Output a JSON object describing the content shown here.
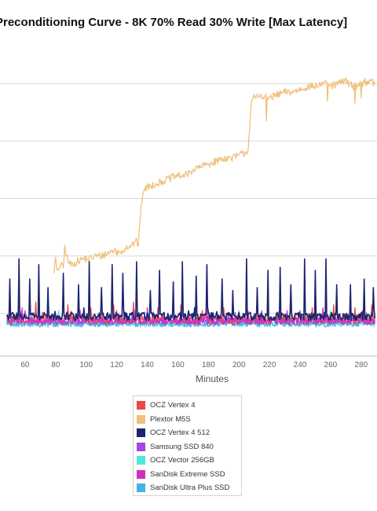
{
  "chart_data": {
    "type": "line",
    "title": "Preconditioning Curve - 8K 70% Read 30% Write [Max Latency]",
    "xlabel": "Minutes",
    "ylabel": "",
    "x_ticks": [
      60,
      80,
      100,
      120,
      140,
      160,
      180,
      200,
      220,
      240,
      260,
      280
    ],
    "x_range_visible": [
      48,
      289
    ],
    "y_range": [
      0,
      100
    ],
    "y_gridlines": [
      5,
      25,
      45,
      65,
      85
    ],
    "grid": true,
    "legend_position": "bottom",
    "sample_interval_minutes": 1,
    "series": [
      {
        "name": "OCZ Vertex 4",
        "color": "#ef4646",
        "baseline": 3.0,
        "noise": 1.6,
        "spikes": [
          [
            50,
            8
          ],
          [
            67,
            9
          ],
          [
            75,
            7
          ],
          [
            88,
            8
          ],
          [
            103,
            7
          ],
          [
            118,
            8
          ],
          [
            131,
            9
          ],
          [
            147,
            7
          ],
          [
            162,
            8
          ],
          [
            176,
            6
          ],
          [
            190,
            7
          ],
          [
            205,
            8
          ],
          [
            219,
            7
          ],
          [
            234,
            9
          ],
          [
            248,
            7
          ],
          [
            262,
            8
          ],
          [
            276,
            7
          ],
          [
            287,
            8
          ]
        ]
      },
      {
        "name": "Plextor M5S",
        "color": "#f0c07c",
        "start_minute": 79,
        "path": [
          [
            79,
            20
          ],
          [
            80,
            24
          ],
          [
            81,
            19
          ],
          [
            83,
            22
          ],
          [
            85,
            21
          ],
          [
            86,
            28
          ],
          [
            88,
            23
          ],
          [
            90,
            22
          ],
          [
            94,
            23
          ],
          [
            98,
            24
          ],
          [
            102,
            24
          ],
          [
            106,
            25
          ],
          [
            110,
            25
          ],
          [
            114,
            26
          ],
          [
            118,
            27
          ],
          [
            122,
            26
          ],
          [
            126,
            28
          ],
          [
            130,
            29
          ],
          [
            133,
            30
          ],
          [
            134,
            29
          ],
          [
            135,
            35
          ],
          [
            136,
            42
          ],
          [
            137,
            47
          ],
          [
            140,
            49
          ],
          [
            145,
            50
          ],
          [
            150,
            51
          ],
          [
            155,
            52
          ],
          [
            160,
            53
          ],
          [
            165,
            53
          ],
          [
            170,
            55
          ],
          [
            175,
            56
          ],
          [
            180,
            57
          ],
          [
            185,
            58
          ],
          [
            190,
            59
          ],
          [
            195,
            59
          ],
          [
            200,
            60
          ],
          [
            204,
            61
          ],
          [
            206,
            62
          ],
          [
            207,
            70
          ],
          [
            208,
            78
          ],
          [
            210,
            80
          ],
          [
            215,
            81
          ],
          [
            220,
            80
          ],
          [
            225,
            81
          ],
          [
            230,
            82
          ],
          [
            235,
            82
          ],
          [
            240,
            83
          ],
          [
            245,
            84
          ],
          [
            250,
            84
          ],
          [
            255,
            85
          ],
          [
            260,
            84
          ],
          [
            265,
            85
          ],
          [
            270,
            86
          ],
          [
            275,
            84
          ],
          [
            280,
            85
          ],
          [
            285,
            86
          ],
          [
            289,
            85
          ]
        ],
        "noise": 1.3,
        "dips": [
          [
            218,
            72
          ],
          [
            258,
            79
          ],
          [
            276,
            78
          ],
          [
            280,
            80
          ]
        ]
      },
      {
        "name": "OCZ Vertex 4 512",
        "color": "#1c2470",
        "baseline": 4.0,
        "noise": 1.4,
        "spikes": [
          [
            50,
            17
          ],
          [
            56,
            24
          ],
          [
            63,
            17
          ],
          [
            69,
            22
          ],
          [
            75,
            14
          ],
          [
            85,
            19
          ],
          [
            95,
            15
          ],
          [
            102,
            23
          ],
          [
            110,
            14
          ],
          [
            117,
            22
          ],
          [
            124,
            19
          ],
          [
            133,
            23
          ],
          [
            142,
            13
          ],
          [
            148,
            20
          ],
          [
            157,
            16
          ],
          [
            163,
            23
          ],
          [
            172,
            18
          ],
          [
            179,
            22
          ],
          [
            189,
            17
          ],
          [
            196,
            13
          ],
          [
            205,
            24
          ],
          [
            212,
            14
          ],
          [
            219,
            20
          ],
          [
            227,
            21
          ],
          [
            234,
            15
          ],
          [
            243,
            24
          ],
          [
            250,
            20
          ],
          [
            257,
            24
          ],
          [
            264,
            15
          ],
          [
            273,
            15
          ],
          [
            282,
            17
          ],
          [
            288,
            14
          ]
        ]
      },
      {
        "name": "Samsung SSD 840",
        "color": "#a048e0",
        "baseline": 2.5,
        "noise": 1.3,
        "spikes": [
          [
            60,
            6
          ],
          [
            90,
            5
          ],
          [
            120,
            6
          ],
          [
            150,
            5
          ],
          [
            180,
            6
          ],
          [
            210,
            5
          ],
          [
            240,
            6
          ],
          [
            270,
            5
          ]
        ]
      },
      {
        "name": "OCZ Vector 256GB",
        "color": "#4ee8d8",
        "baseline": 1.5,
        "noise": 1.1,
        "spikes": [
          [
            55,
            5
          ],
          [
            82,
            6
          ],
          [
            110,
            5
          ],
          [
            140,
            6
          ],
          [
            170,
            5
          ],
          [
            200,
            6
          ],
          [
            230,
            5
          ],
          [
            260,
            6
          ],
          [
            285,
            5
          ]
        ]
      },
      {
        "name": "SanDisk Extreme SSD",
        "color": "#d22fc0",
        "baseline": 2.3,
        "noise": 1.3,
        "spikes": [
          [
            58,
            7
          ],
          [
            96,
            6
          ],
          [
            140,
            7
          ],
          [
            179,
            21
          ],
          [
            215,
            6
          ],
          [
            255,
            7
          ],
          [
            281,
            6
          ]
        ]
      },
      {
        "name": "SanDisk Ultra Plus SSD",
        "color": "#45b2ea",
        "baseline": 1.3,
        "noise": 1.0,
        "spikes": [
          [
            64,
            5
          ],
          [
            100,
            4
          ],
          [
            130,
            5
          ],
          [
            165,
            4
          ],
          [
            195,
            5
          ],
          [
            225,
            4
          ],
          [
            250,
            5
          ],
          [
            279,
            4
          ]
        ]
      }
    ]
  }
}
